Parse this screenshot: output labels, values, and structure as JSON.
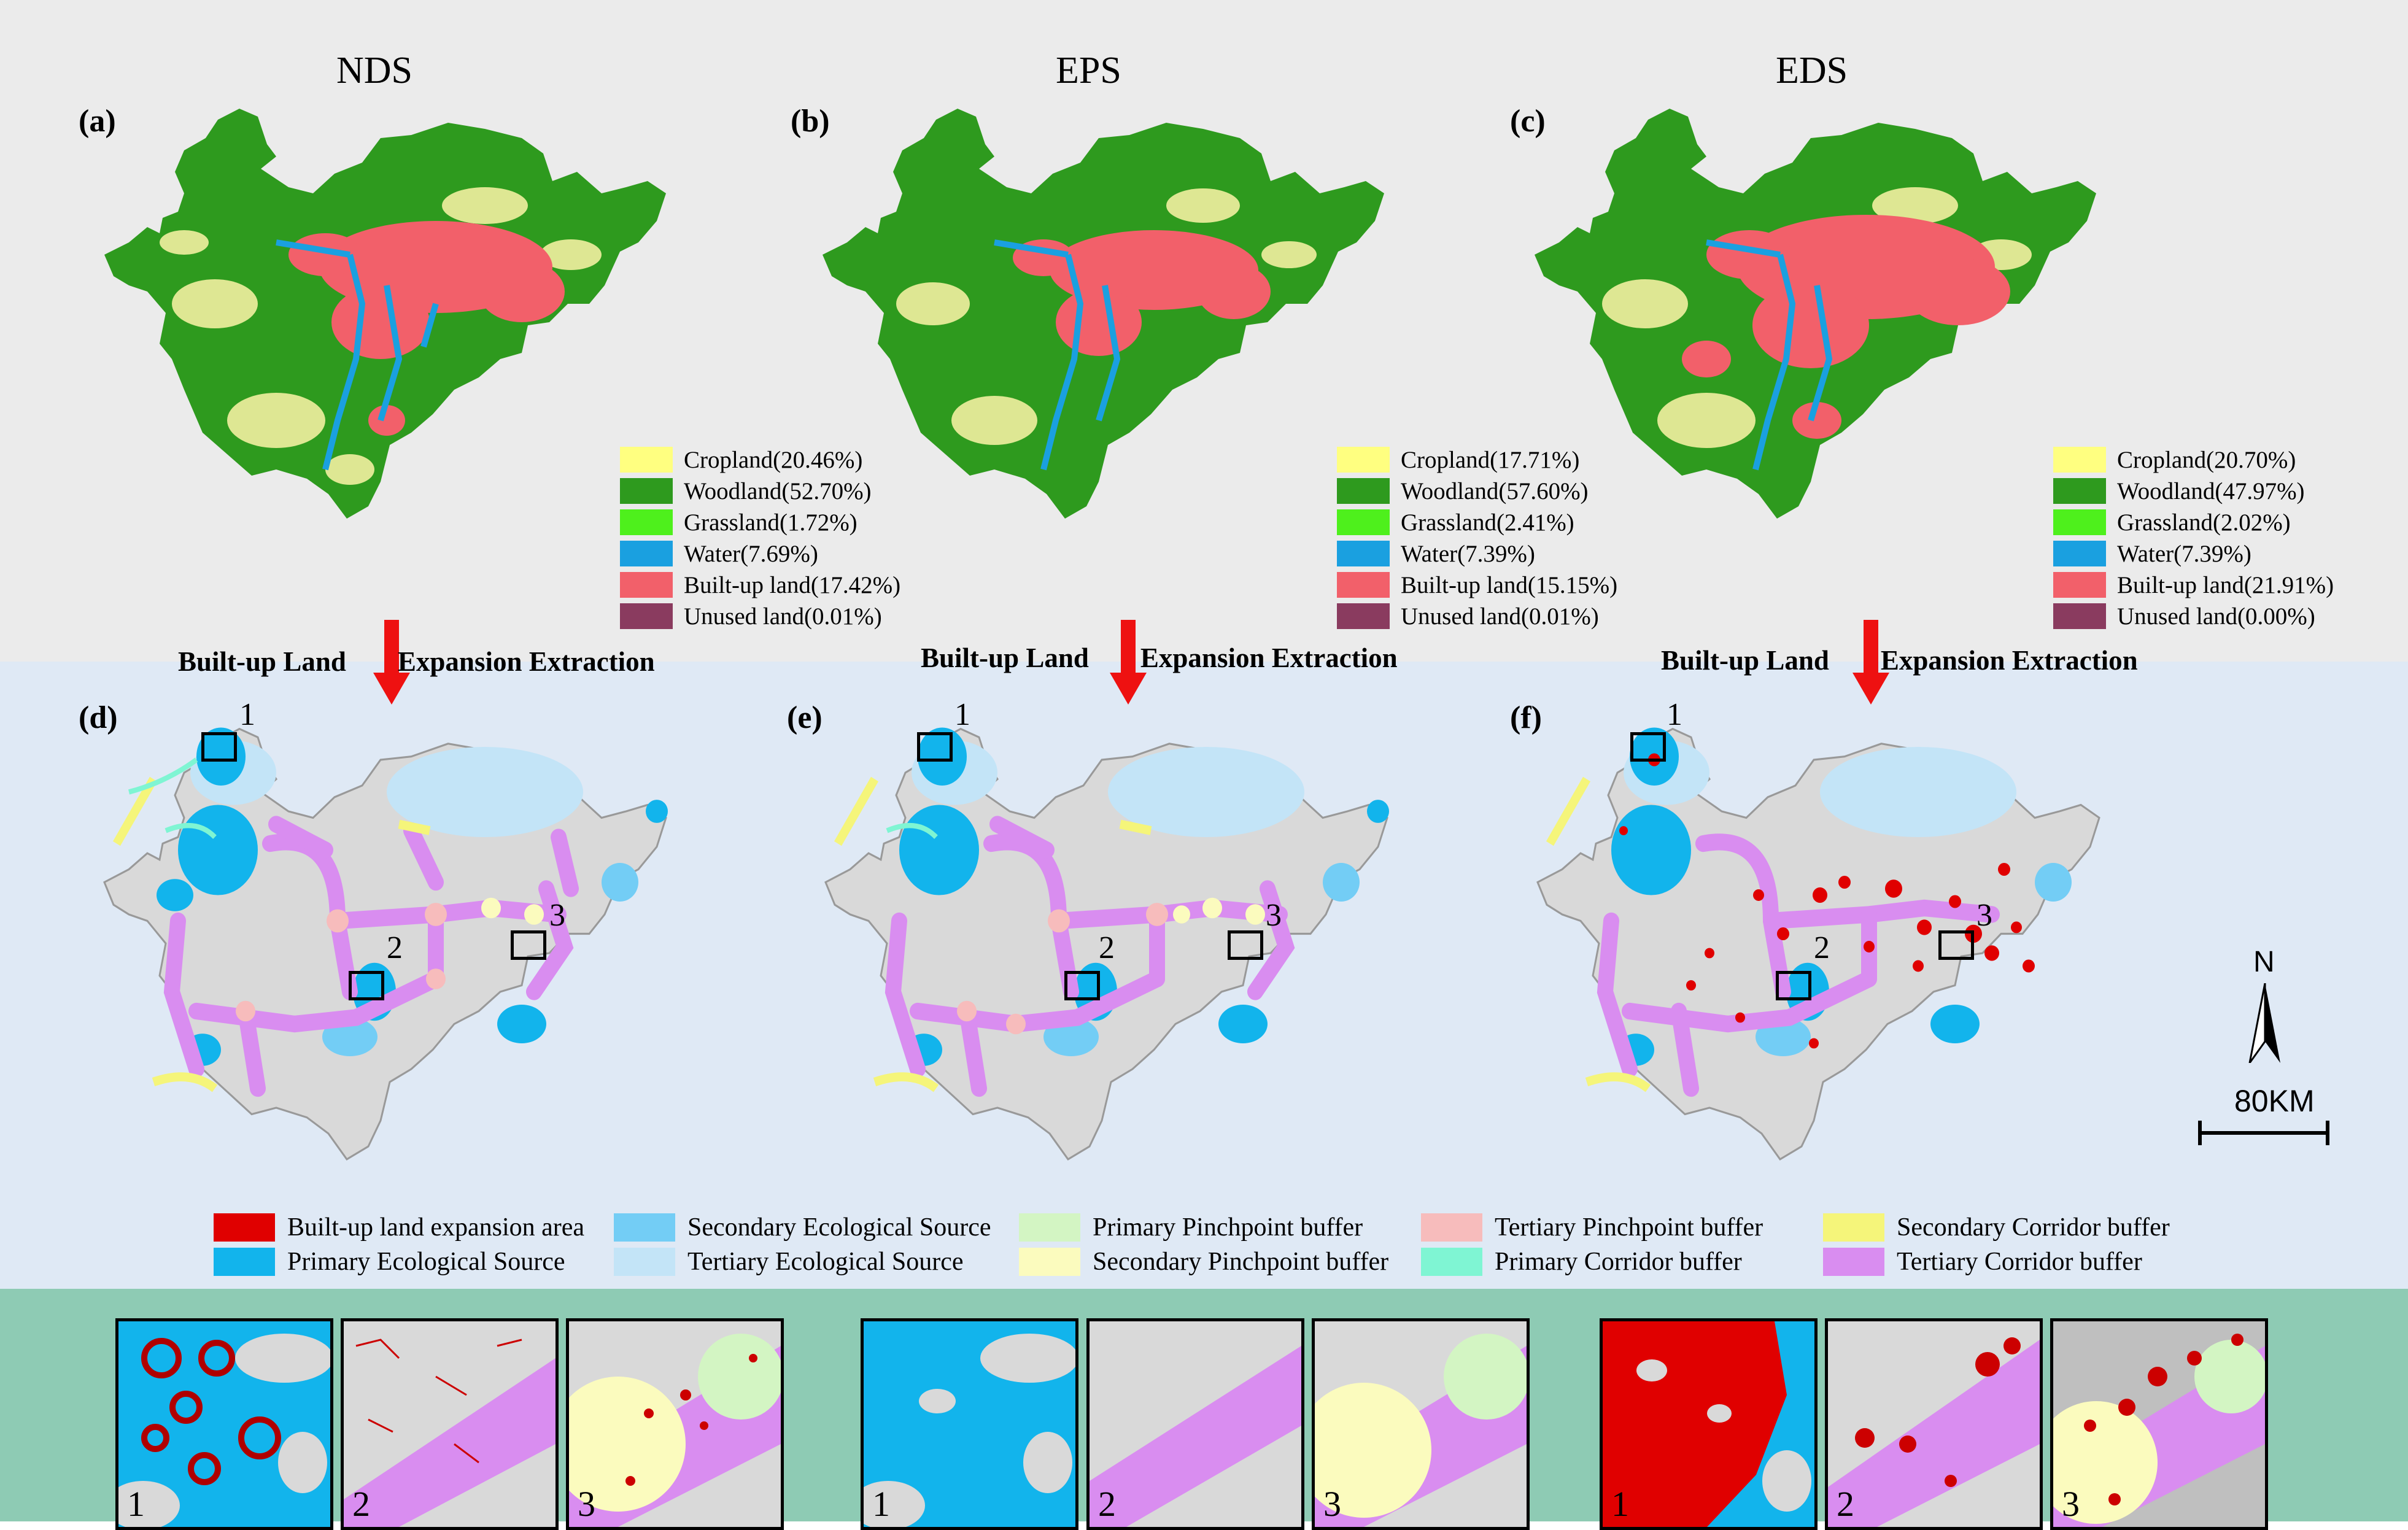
{
  "scenarios": [
    {
      "title": "NDS",
      "panel_top": "(a)",
      "panel_bottom": "(d)"
    },
    {
      "title": "EPS",
      "panel_top": "(b)",
      "panel_bottom": "(e)"
    },
    {
      "title": "EDS",
      "panel_top": "(c)",
      "panel_bottom": "(f)"
    }
  ],
  "land_use_colors": {
    "cropland": "#ffff80",
    "woodland": "#2e9a1e",
    "grassland": "#4ef01c",
    "water": "#1aa0e0",
    "builtup": "#f2606a",
    "unused": "#8a3b5f"
  },
  "land_use_legends": [
    [
      "Cropland(20.46%)",
      "Woodland(52.70%)",
      "Grassland(1.72%)",
      "Water(7.69%)",
      "Built-up land(17.42%)",
      "Unused land(0.01%)"
    ],
    [
      "Cropland(17.71%)",
      "Woodland(57.60%)",
      "Grassland(2.41%)",
      "Water(7.39%)",
      "Built-up land(15.15%)",
      "Unused land(0.01%)"
    ],
    [
      "Cropland(20.70%)",
      "Woodland(47.97%)",
      "Grassland(2.02%)",
      "Water(7.39%)",
      "Built-up land(21.91%)",
      "Unused land(0.00%)"
    ]
  ],
  "extraction_label": {
    "left": "Built-up Land",
    "right": "Expansion Extraction"
  },
  "zone_labels": [
    "1",
    "2",
    "3"
  ],
  "scale": {
    "north": "N",
    "distance": "80KM"
  },
  "network_legend": [
    {
      "label": "Built-up land expansion area",
      "color": "#e00000"
    },
    {
      "label": "Primary Ecological Source",
      "color": "#12b4ec"
    },
    {
      "label": "Secondary Ecological Source",
      "color": "#73cdf5"
    },
    {
      "label": "Tertiary Ecological Source",
      "color": "#c3e4f7"
    },
    {
      "label": "Primary Pinchpoint buffer",
      "color": "#d3f5c3"
    },
    {
      "label": "Secondary Pinchpoint buffer",
      "color": "#fbfbbe"
    },
    {
      "label": "Tertiary Pinchpoint buffer",
      "color": "#f7bcbc"
    },
    {
      "label": "Primary Corridor buffer",
      "color": "#7ff5d3"
    },
    {
      "label": "Secondary Corridor buffer",
      "color": "#f5f57a"
    },
    {
      "label": "Tertiary Corridor buffer",
      "color": "#d98df0"
    }
  ],
  "inset_numbers": [
    "1",
    "2",
    "3"
  ]
}
